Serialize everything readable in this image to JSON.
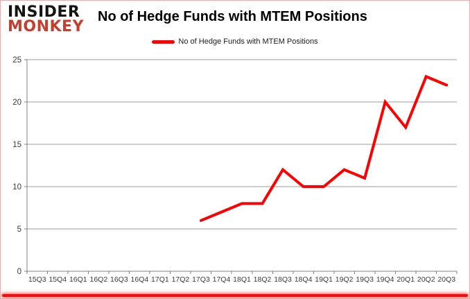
{
  "logo": {
    "line1": "INSIDER",
    "line2": "MONKEY",
    "line1_color": "#141414",
    "line2_color": "#c63f2e"
  },
  "header": {
    "title": "No of Hedge Funds with MTEM Positions"
  },
  "legend": {
    "label": "No of Hedge Funds with MTEM Positions",
    "swatch_color": "#ff0000"
  },
  "chart_data": {
    "type": "line",
    "title": "No of Hedge Funds with MTEM Positions",
    "categories": [
      "15Q3",
      "15Q4",
      "16Q1",
      "16Q2",
      "16Q3",
      "16Q4",
      "17Q1",
      "17Q2",
      "17Q3",
      "17Q4",
      "18Q1",
      "18Q2",
      "18Q3",
      "18Q4",
      "19Q1",
      "19Q2",
      "19Q3",
      "19Q4",
      "20Q1",
      "20Q2",
      "20Q3"
    ],
    "series": [
      {
        "name": "No of Hedge Funds with MTEM Positions",
        "color": "#ff0000",
        "values": [
          null,
          null,
          null,
          null,
          null,
          null,
          null,
          null,
          6,
          7,
          8,
          8,
          12,
          10,
          10,
          12,
          11,
          20,
          17,
          23,
          22
        ]
      }
    ],
    "xlabel": "",
    "ylabel": "",
    "ylim": [
      0,
      25
    ],
    "yticks": [
      0,
      5,
      10,
      15,
      20,
      25
    ],
    "grid": true,
    "legend_position": "top-center",
    "colors": {
      "grid_line": "#9d9d9d",
      "axis_line": "#808080",
      "tick_label": "#3a3a3a"
    }
  }
}
